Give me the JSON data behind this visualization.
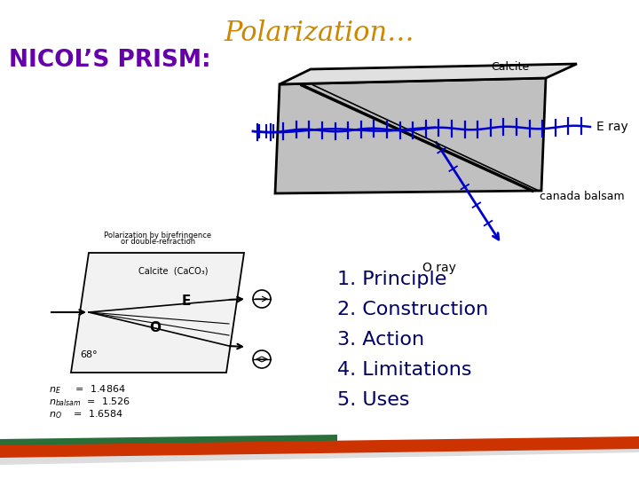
{
  "title": "Polarization…",
  "title_color": "#CC8800",
  "title_fontstyle": "italic",
  "title_fontsize": 22,
  "nicol_text": "NICOL’S PRISM:",
  "nicol_color": "#6600AA",
  "nicol_fontsize": 19,
  "calcite_label": "Calcite",
  "eray_label": "E ray",
  "canada_label": "canada balsam",
  "oray_label": "O ray",
  "list_items": [
    "1. Principle",
    "2. Construction",
    "3. Action",
    "4. Limitations",
    "5. Uses"
  ],
  "list_color": "#000066",
  "list_fontsize": 16,
  "bg_color": "#FFFFFF",
  "prism_fill": "#C0C0C0",
  "prism_top_fill": "#E0E0E0",
  "prism_edge": "#000000",
  "ray_color": "#0000CC",
  "cut_line_color": "#000000"
}
